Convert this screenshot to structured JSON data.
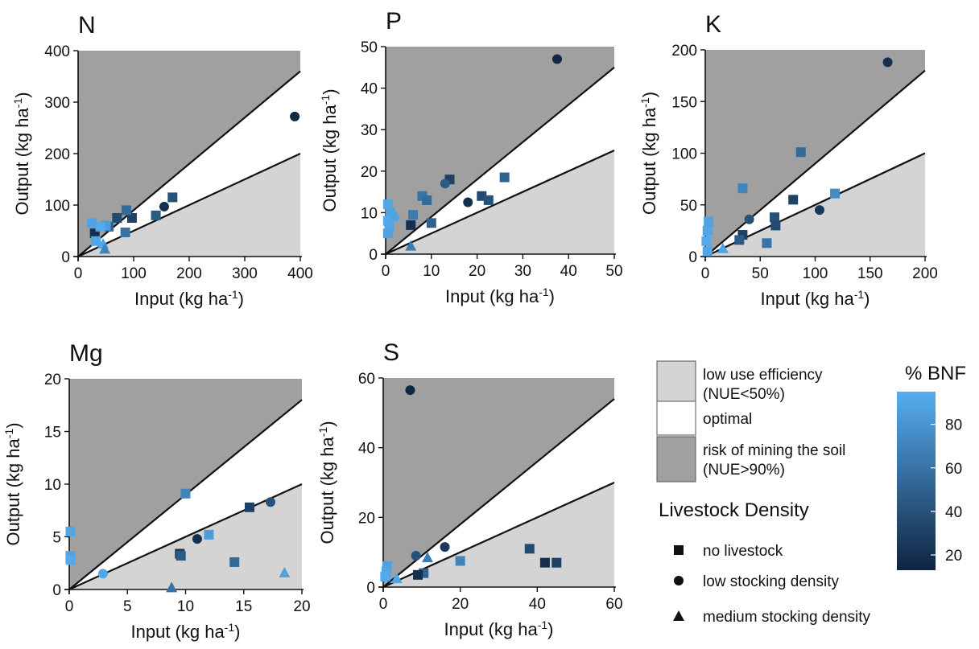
{
  "colors": {
    "mining_region": "#a0a0a0",
    "low_efficiency_region": "#d4d4d4",
    "optimal_region": "#ffffff",
    "bnf_low": "#0f2440",
    "bnf_high": "#56aef0",
    "line": "#111111"
  },
  "legend": {
    "regions": [
      {
        "key": "low",
        "text": [
          "low use efficiency",
          "(NUE<50%)"
        ],
        "color": "#d4d4d4"
      },
      {
        "key": "opt",
        "text": [
          "optimal"
        ],
        "color": "#ffffff"
      },
      {
        "key": "mine",
        "text": [
          "risk of mining the soil",
          "(NUE>90%)"
        ],
        "color": "#a0a0a0"
      }
    ],
    "livestock_title": "Livestock Density",
    "livestock": [
      {
        "shape": "square",
        "label": "no livestock"
      },
      {
        "shape": "circle",
        "label": "low stocking density"
      },
      {
        "shape": "triangle",
        "label": "medium stocking density"
      }
    ],
    "colorbar": {
      "title": "% BNF",
      "min": 13,
      "max": 95,
      "ticks": [
        20,
        40,
        60,
        80
      ]
    }
  },
  "chart_data": [
    {
      "type": "scatter",
      "title": "N",
      "xlabel": "Input (kg ha-1)",
      "ylabel": "Output (kg ha-1)",
      "xlim": [
        0,
        400
      ],
      "ylim": [
        0,
        400
      ],
      "xticks": [
        0,
        100,
        200,
        300,
        400
      ],
      "yticks": [
        0,
        100,
        200,
        300,
        400
      ],
      "reference_lines": {
        "nue_50": 0.5,
        "nue_90": 0.9
      },
      "points": [
        {
          "x": 390,
          "y": 272,
          "shape": "circle",
          "bnf": 15
        },
        {
          "x": 170,
          "y": 115,
          "shape": "square",
          "bnf": 40
        },
        {
          "x": 155,
          "y": 97,
          "shape": "circle",
          "bnf": 20
        },
        {
          "x": 140,
          "y": 80,
          "shape": "square",
          "bnf": 45
        },
        {
          "x": 97,
          "y": 75,
          "shape": "square",
          "bnf": 30
        },
        {
          "x": 87,
          "y": 90,
          "shape": "square",
          "bnf": 55
        },
        {
          "x": 85,
          "y": 47,
          "shape": "square",
          "bnf": 60
        },
        {
          "x": 70,
          "y": 75,
          "shape": "square",
          "bnf": 35
        },
        {
          "x": 55,
          "y": 58,
          "shape": "square",
          "bnf": 50
        },
        {
          "x": 50,
          "y": 60,
          "shape": "square",
          "bnf": 85
        },
        {
          "x": 30,
          "y": 45,
          "shape": "square",
          "bnf": 20
        },
        {
          "x": 25,
          "y": 65,
          "shape": "square",
          "bnf": 88
        },
        {
          "x": 32,
          "y": 30,
          "shape": "square",
          "bnf": 90
        },
        {
          "x": 40,
          "y": 58,
          "shape": "square",
          "bnf": 92
        },
        {
          "x": 45,
          "y": 25,
          "shape": "triangle",
          "bnf": 90
        },
        {
          "x": 48,
          "y": 15,
          "shape": "triangle",
          "bnf": 70
        }
      ]
    },
    {
      "type": "scatter",
      "title": "P",
      "xlabel": "Input (kg ha-1)",
      "ylabel": "Output (kg ha-1)",
      "xlim": [
        0,
        50
      ],
      "ylim": [
        0,
        50
      ],
      "xticks": [
        0,
        10,
        20,
        30,
        40,
        50
      ],
      "yticks": [
        0,
        10,
        20,
        30,
        40,
        50
      ],
      "reference_lines": {
        "nue_50": 0.5,
        "nue_90": 0.9
      },
      "points": [
        {
          "x": 37.5,
          "y": 47,
          "shape": "circle",
          "bnf": 15
        },
        {
          "x": 26,
          "y": 18.5,
          "shape": "square",
          "bnf": 50
        },
        {
          "x": 21,
          "y": 14,
          "shape": "square",
          "bnf": 35
        },
        {
          "x": 22.5,
          "y": 13,
          "shape": "square",
          "bnf": 40
        },
        {
          "x": 18,
          "y": 12.5,
          "shape": "circle",
          "bnf": 20
        },
        {
          "x": 14,
          "y": 18,
          "shape": "square",
          "bnf": 30
        },
        {
          "x": 13,
          "y": 17,
          "shape": "circle",
          "bnf": 45
        },
        {
          "x": 8,
          "y": 14,
          "shape": "square",
          "bnf": 60
        },
        {
          "x": 9,
          "y": 13,
          "shape": "square",
          "bnf": 55
        },
        {
          "x": 10,
          "y": 7.5,
          "shape": "square",
          "bnf": 50
        },
        {
          "x": 6,
          "y": 9.5,
          "shape": "square",
          "bnf": 65
        },
        {
          "x": 5.5,
          "y": 7,
          "shape": "square",
          "bnf": 20
        },
        {
          "x": 5.5,
          "y": 2,
          "shape": "triangle",
          "bnf": 65
        },
        {
          "x": 0.5,
          "y": 12,
          "shape": "square",
          "bnf": 90
        },
        {
          "x": 1,
          "y": 10,
          "shape": "square",
          "bnf": 88
        },
        {
          "x": 0.5,
          "y": 8,
          "shape": "square",
          "bnf": 92
        },
        {
          "x": 0.8,
          "y": 6.5,
          "shape": "square",
          "bnf": 90
        },
        {
          "x": 0.5,
          "y": 5,
          "shape": "square",
          "bnf": 88
        },
        {
          "x": 1.5,
          "y": 9,
          "shape": "triangle",
          "bnf": 90
        },
        {
          "x": 2,
          "y": 9.5,
          "shape": "triangle",
          "bnf": 88
        }
      ]
    },
    {
      "type": "scatter",
      "title": "K",
      "xlabel": "Input (kg ha-1)",
      "ylabel": "Output (kg ha-1)",
      "xlim": [
        0,
        200
      ],
      "ylim": [
        0,
        200
      ],
      "xticks": [
        0,
        50,
        100,
        150,
        200
      ],
      "yticks": [
        0,
        50,
        100,
        150,
        200
      ],
      "reference_lines": {
        "nue_50": 0.5,
        "nue_90": 0.9
      },
      "points": [
        {
          "x": 166,
          "y": 188,
          "shape": "circle",
          "bnf": 20
        },
        {
          "x": 118,
          "y": 61,
          "shape": "square",
          "bnf": 75
        },
        {
          "x": 104,
          "y": 45,
          "shape": "circle",
          "bnf": 25
        },
        {
          "x": 87,
          "y": 101,
          "shape": "square",
          "bnf": 55
        },
        {
          "x": 80,
          "y": 55,
          "shape": "square",
          "bnf": 30
        },
        {
          "x": 63,
          "y": 38,
          "shape": "square",
          "bnf": 40
        },
        {
          "x": 64,
          "y": 30,
          "shape": "square",
          "bnf": 35
        },
        {
          "x": 56,
          "y": 13,
          "shape": "square",
          "bnf": 60
        },
        {
          "x": 40,
          "y": 36,
          "shape": "circle",
          "bnf": 40
        },
        {
          "x": 34,
          "y": 66,
          "shape": "square",
          "bnf": 70
        },
        {
          "x": 34,
          "y": 21,
          "shape": "square",
          "bnf": 30
        },
        {
          "x": 31,
          "y": 16,
          "shape": "square",
          "bnf": 45
        },
        {
          "x": 16,
          "y": 8,
          "shape": "triangle",
          "bnf": 88
        },
        {
          "x": 3,
          "y": 34,
          "shape": "square",
          "bnf": 88
        },
        {
          "x": 2,
          "y": 25,
          "shape": "square",
          "bnf": 90
        },
        {
          "x": 1,
          "y": 15,
          "shape": "square",
          "bnf": 92
        },
        {
          "x": 2,
          "y": 5,
          "shape": "square",
          "bnf": 90
        }
      ]
    },
    {
      "type": "scatter",
      "title": "Mg",
      "xlabel": "Input (kg ha-1)",
      "ylabel": "Output (kg ha-1)",
      "xlim": [
        0,
        20
      ],
      "ylim": [
        0,
        20
      ],
      "xticks": [
        0,
        5,
        10,
        15,
        20
      ],
      "yticks": [
        0,
        5,
        10,
        15,
        20
      ],
      "reference_lines": {
        "nue_50": 0.5,
        "nue_90": 0.9
      },
      "points": [
        {
          "x": 17.3,
          "y": 8.3,
          "shape": "circle",
          "bnf": 40
        },
        {
          "x": 15.5,
          "y": 7.8,
          "shape": "square",
          "bnf": 30
        },
        {
          "x": 10,
          "y": 9.1,
          "shape": "square",
          "bnf": 70
        },
        {
          "x": 12,
          "y": 5.2,
          "shape": "square",
          "bnf": 85
        },
        {
          "x": 11,
          "y": 4.8,
          "shape": "circle",
          "bnf": 20
        },
        {
          "x": 9.5,
          "y": 3.4,
          "shape": "square",
          "bnf": 25
        },
        {
          "x": 9.6,
          "y": 3.2,
          "shape": "square",
          "bnf": 45
        },
        {
          "x": 14.2,
          "y": 2.6,
          "shape": "square",
          "bnf": 55
        },
        {
          "x": 18.5,
          "y": 1.6,
          "shape": "triangle",
          "bnf": 88
        },
        {
          "x": 8.8,
          "y": 0.2,
          "shape": "triangle",
          "bnf": 60
        },
        {
          "x": 2.9,
          "y": 1.5,
          "shape": "circle",
          "bnf": 90
        },
        {
          "x": 0.1,
          "y": 5.5,
          "shape": "square",
          "bnf": 90
        },
        {
          "x": 0.1,
          "y": 3.2,
          "shape": "square",
          "bnf": 88
        },
        {
          "x": 0.1,
          "y": 2.8,
          "shape": "square",
          "bnf": 92
        }
      ]
    },
    {
      "type": "scatter",
      "title": "S",
      "xlabel": "Input (kg ha-1)",
      "ylabel": "Output (kg ha-1)",
      "xlim": [
        0,
        60
      ],
      "ylim": [
        0,
        60
      ],
      "xticks": [
        0,
        20,
        40,
        60
      ],
      "yticks": [
        0,
        20,
        40,
        60
      ],
      "reference_lines": {
        "nue_50": 0.5,
        "nue_90": 0.9
      },
      "points": [
        {
          "x": 7,
          "y": 56.5,
          "shape": "circle",
          "bnf": 15
        },
        {
          "x": 16,
          "y": 11.5,
          "shape": "circle",
          "bnf": 25
        },
        {
          "x": 11.5,
          "y": 8.5,
          "shape": "triangle",
          "bnf": 65
        },
        {
          "x": 8.5,
          "y": 9,
          "shape": "circle",
          "bnf": 40
        },
        {
          "x": 20,
          "y": 7.5,
          "shape": "square",
          "bnf": 70
        },
        {
          "x": 10.5,
          "y": 4,
          "shape": "square",
          "bnf": 50
        },
        {
          "x": 9,
          "y": 3.5,
          "shape": "square",
          "bnf": 20
        },
        {
          "x": 3.5,
          "y": 2.5,
          "shape": "triangle",
          "bnf": 90
        },
        {
          "x": 1,
          "y": 6,
          "shape": "square",
          "bnf": 88
        },
        {
          "x": 0.8,
          "y": 4.5,
          "shape": "square",
          "bnf": 90
        },
        {
          "x": 0.5,
          "y": 3,
          "shape": "square",
          "bnf": 92
        },
        {
          "x": 38,
          "y": 11,
          "shape": "square",
          "bnf": 35
        },
        {
          "x": 42,
          "y": 7,
          "shape": "square",
          "bnf": 20
        },
        {
          "x": 45,
          "y": 7,
          "shape": "square",
          "bnf": 30
        }
      ]
    }
  ]
}
